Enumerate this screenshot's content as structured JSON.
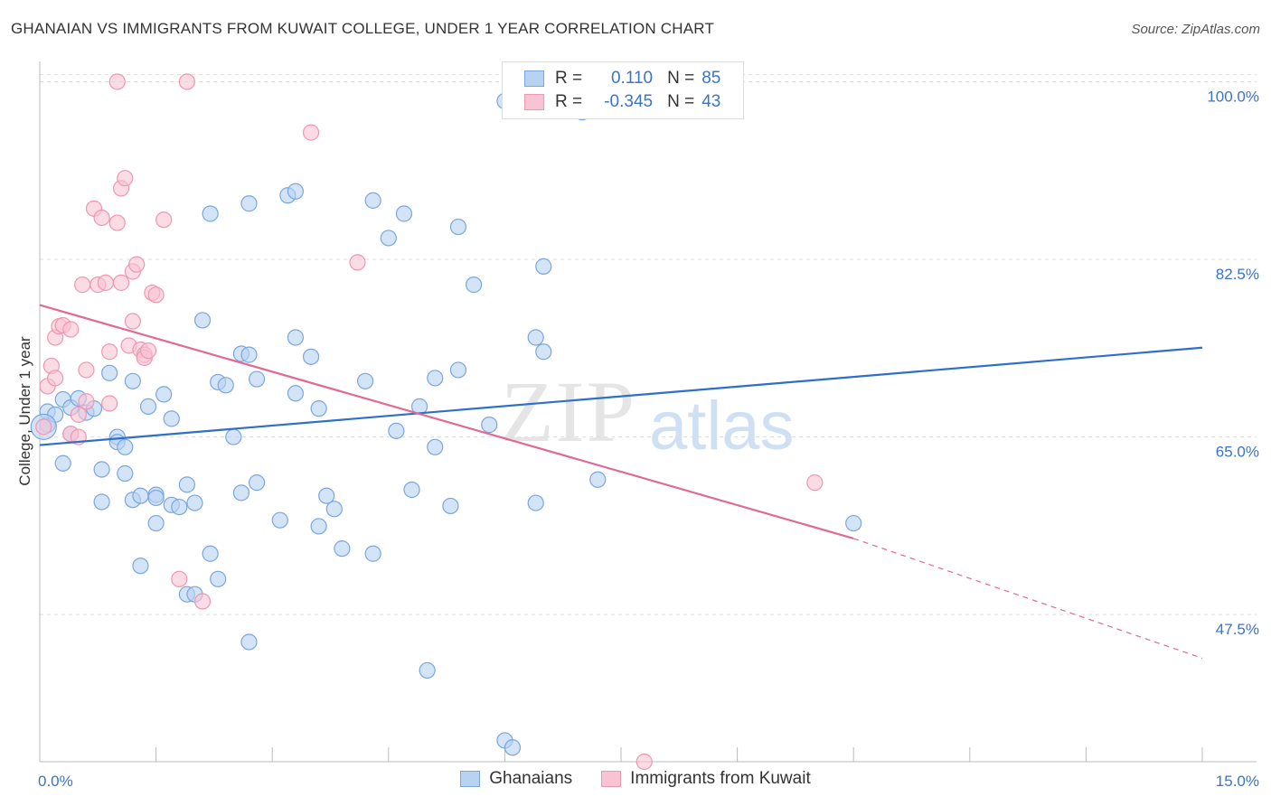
{
  "title": "GHANAIAN VS IMMIGRANTS FROM KUWAIT COLLEGE, UNDER 1 YEAR CORRELATION CHART",
  "source": "Source: ZipAtlas.com",
  "watermark": {
    "zip": "ZIP",
    "atlas": "atlas"
  },
  "stats": {
    "r_label": "R =",
    "n_label": "N =",
    "ghanaians": {
      "r": "0.110",
      "n": "85"
    },
    "kuwait": {
      "r": "-0.345",
      "n": "43"
    }
  },
  "legend": {
    "ghanaians": "Ghanaians",
    "kuwait": "Immigrants from Kuwait"
  },
  "colors": {
    "blue_fill": "#b8d2f2",
    "blue_stroke": "#7aa6df",
    "blue_line": "#2e6fcc",
    "pink_fill": "#f8c3d2",
    "pink_stroke": "#ef97b2",
    "pink_line": "#e06a95",
    "tick_text": "#3a74c9",
    "grid": "#dddddd"
  },
  "chart_data": {
    "type": "scatter",
    "title": "GHANAIAN VS IMMIGRANTS FROM KUWAIT COLLEGE, UNDER 1 YEAR CORRELATION CHART",
    "xlabel": "",
    "ylabel": "College, Under 1 year",
    "xlim": [
      0,
      15
    ],
    "ylim": [
      33,
      102
    ],
    "x_tick_labels": [
      {
        "v": 0,
        "label": "0.0%"
      },
      {
        "v": 15,
        "label": "15.0%"
      }
    ],
    "x_ticks_minor": [
      1.5,
      3,
      4.5,
      6,
      7.5,
      9,
      10.5,
      12,
      13.5,
      15
    ],
    "y_ticks": [
      {
        "v": 100,
        "label": "100.0%"
      },
      {
        "v": 82.5,
        "label": "82.5%"
      },
      {
        "v": 65,
        "label": "65.0%"
      },
      {
        "v": 47.5,
        "label": "47.5%"
      }
    ],
    "series": [
      {
        "name": "Ghanaians",
        "color": "blue",
        "trend": {
          "x0": 0,
          "y0": 64.2,
          "x1": 15,
          "y1": 73.8
        },
        "points": [
          [
            0.1,
            66.2
          ],
          [
            0.1,
            67.5
          ],
          [
            0.2,
            67.2
          ],
          [
            0.3,
            68.7
          ],
          [
            0.3,
            62.4
          ],
          [
            0.4,
            67.9
          ],
          [
            0.4,
            65.3
          ],
          [
            0.5,
            68.8
          ],
          [
            0.6,
            67.4
          ],
          [
            0.7,
            67.8
          ],
          [
            0.8,
            58.6
          ],
          [
            0.8,
            61.8
          ],
          [
            0.9,
            71.3
          ],
          [
            1.0,
            65.0
          ],
          [
            1.0,
            64.5
          ],
          [
            1.1,
            64.0
          ],
          [
            1.1,
            61.4
          ],
          [
            1.2,
            70.5
          ],
          [
            1.2,
            58.8
          ],
          [
            1.3,
            52.3
          ],
          [
            1.3,
            59.2
          ],
          [
            1.4,
            68.0
          ],
          [
            1.5,
            59.3
          ],
          [
            1.5,
            59.0
          ],
          [
            1.5,
            56.5
          ],
          [
            1.6,
            69.2
          ],
          [
            1.7,
            66.8
          ],
          [
            1.7,
            58.3
          ],
          [
            1.8,
            58.1
          ],
          [
            1.9,
            60.3
          ],
          [
            1.9,
            49.5
          ],
          [
            2.0,
            58.5
          ],
          [
            2.0,
            49.5
          ],
          [
            2.1,
            76.5
          ],
          [
            2.2,
            53.5
          ],
          [
            2.2,
            87.0
          ],
          [
            2.3,
            70.4
          ],
          [
            2.3,
            51.0
          ],
          [
            2.4,
            70.1
          ],
          [
            2.5,
            65.0
          ],
          [
            2.6,
            73.2
          ],
          [
            2.6,
            59.5
          ],
          [
            2.7,
            73.1
          ],
          [
            2.7,
            88.0
          ],
          [
            2.7,
            44.8
          ],
          [
            2.8,
            60.5
          ],
          [
            2.8,
            70.7
          ],
          [
            3.1,
            56.8
          ],
          [
            3.2,
            88.8
          ],
          [
            3.3,
            89.2
          ],
          [
            3.3,
            74.8
          ],
          [
            3.3,
            69.3
          ],
          [
            3.5,
            72.9
          ],
          [
            3.6,
            67.8
          ],
          [
            3.6,
            56.2
          ],
          [
            3.7,
            59.2
          ],
          [
            3.8,
            57.9
          ],
          [
            3.9,
            54.0
          ],
          [
            4.2,
            70.5
          ],
          [
            4.3,
            88.3
          ],
          [
            4.3,
            53.5
          ],
          [
            4.5,
            84.6
          ],
          [
            4.6,
            65.6
          ],
          [
            4.7,
            87.0
          ],
          [
            4.8,
            59.8
          ],
          [
            4.9,
            68.0
          ],
          [
            5.0,
            42.0
          ],
          [
            5.1,
            70.8
          ],
          [
            5.1,
            64.0
          ],
          [
            5.3,
            58.2
          ],
          [
            5.4,
            85.7
          ],
          [
            5.4,
            71.6
          ],
          [
            5.6,
            80.0
          ],
          [
            5.8,
            66.2
          ],
          [
            6.0,
            98.1
          ],
          [
            6.0,
            35.1
          ],
          [
            6.1,
            34.4
          ],
          [
            6.4,
            74.8
          ],
          [
            6.4,
            58.5
          ],
          [
            6.5,
            81.8
          ],
          [
            6.5,
            73.4
          ],
          [
            7.0,
            97.0
          ],
          [
            7.2,
            60.8
          ],
          [
            10.5,
            56.5
          ],
          [
            0.05,
            66.0
          ]
        ]
      },
      {
        "name": "Immigrants from Kuwait",
        "color": "pink",
        "trend": {
          "x0": 0,
          "y0": 78.0,
          "x1": 10.5,
          "y1": 55.0,
          "dash_to_x": 15,
          "dash_to_y": 43.2
        },
        "points": [
          [
            0.05,
            66.0
          ],
          [
            0.1,
            70.0
          ],
          [
            0.15,
            72.0
          ],
          [
            0.2,
            70.8
          ],
          [
            0.2,
            74.8
          ],
          [
            0.25,
            75.9
          ],
          [
            0.3,
            76.0
          ],
          [
            0.4,
            75.6
          ],
          [
            0.4,
            65.3
          ],
          [
            0.5,
            67.2
          ],
          [
            0.5,
            65.0
          ],
          [
            0.55,
            80.0
          ],
          [
            0.6,
            71.6
          ],
          [
            0.6,
            68.5
          ],
          [
            0.7,
            87.5
          ],
          [
            0.75,
            80.0
          ],
          [
            0.8,
            86.6
          ],
          [
            0.85,
            80.2
          ],
          [
            0.9,
            73.4
          ],
          [
            0.9,
            68.3
          ],
          [
            1.0,
            86.1
          ],
          [
            1.0,
            100.0
          ],
          [
            1.05,
            80.2
          ],
          [
            1.05,
            89.5
          ],
          [
            1.1,
            90.5
          ],
          [
            1.15,
            74.0
          ],
          [
            1.2,
            76.4
          ],
          [
            1.2,
            81.3
          ],
          [
            1.25,
            82.0
          ],
          [
            1.3,
            73.6
          ],
          [
            1.35,
            73.1
          ],
          [
            1.35,
            72.8
          ],
          [
            1.4,
            73.5
          ],
          [
            1.45,
            79.2
          ],
          [
            1.5,
            79.0
          ],
          [
            1.6,
            86.4
          ],
          [
            1.8,
            51.0
          ],
          [
            1.9,
            100.0
          ],
          [
            2.1,
            48.8
          ],
          [
            3.5,
            95.0
          ],
          [
            4.1,
            82.2
          ],
          [
            7.8,
            33.0
          ],
          [
            10.0,
            60.5
          ]
        ]
      }
    ]
  }
}
